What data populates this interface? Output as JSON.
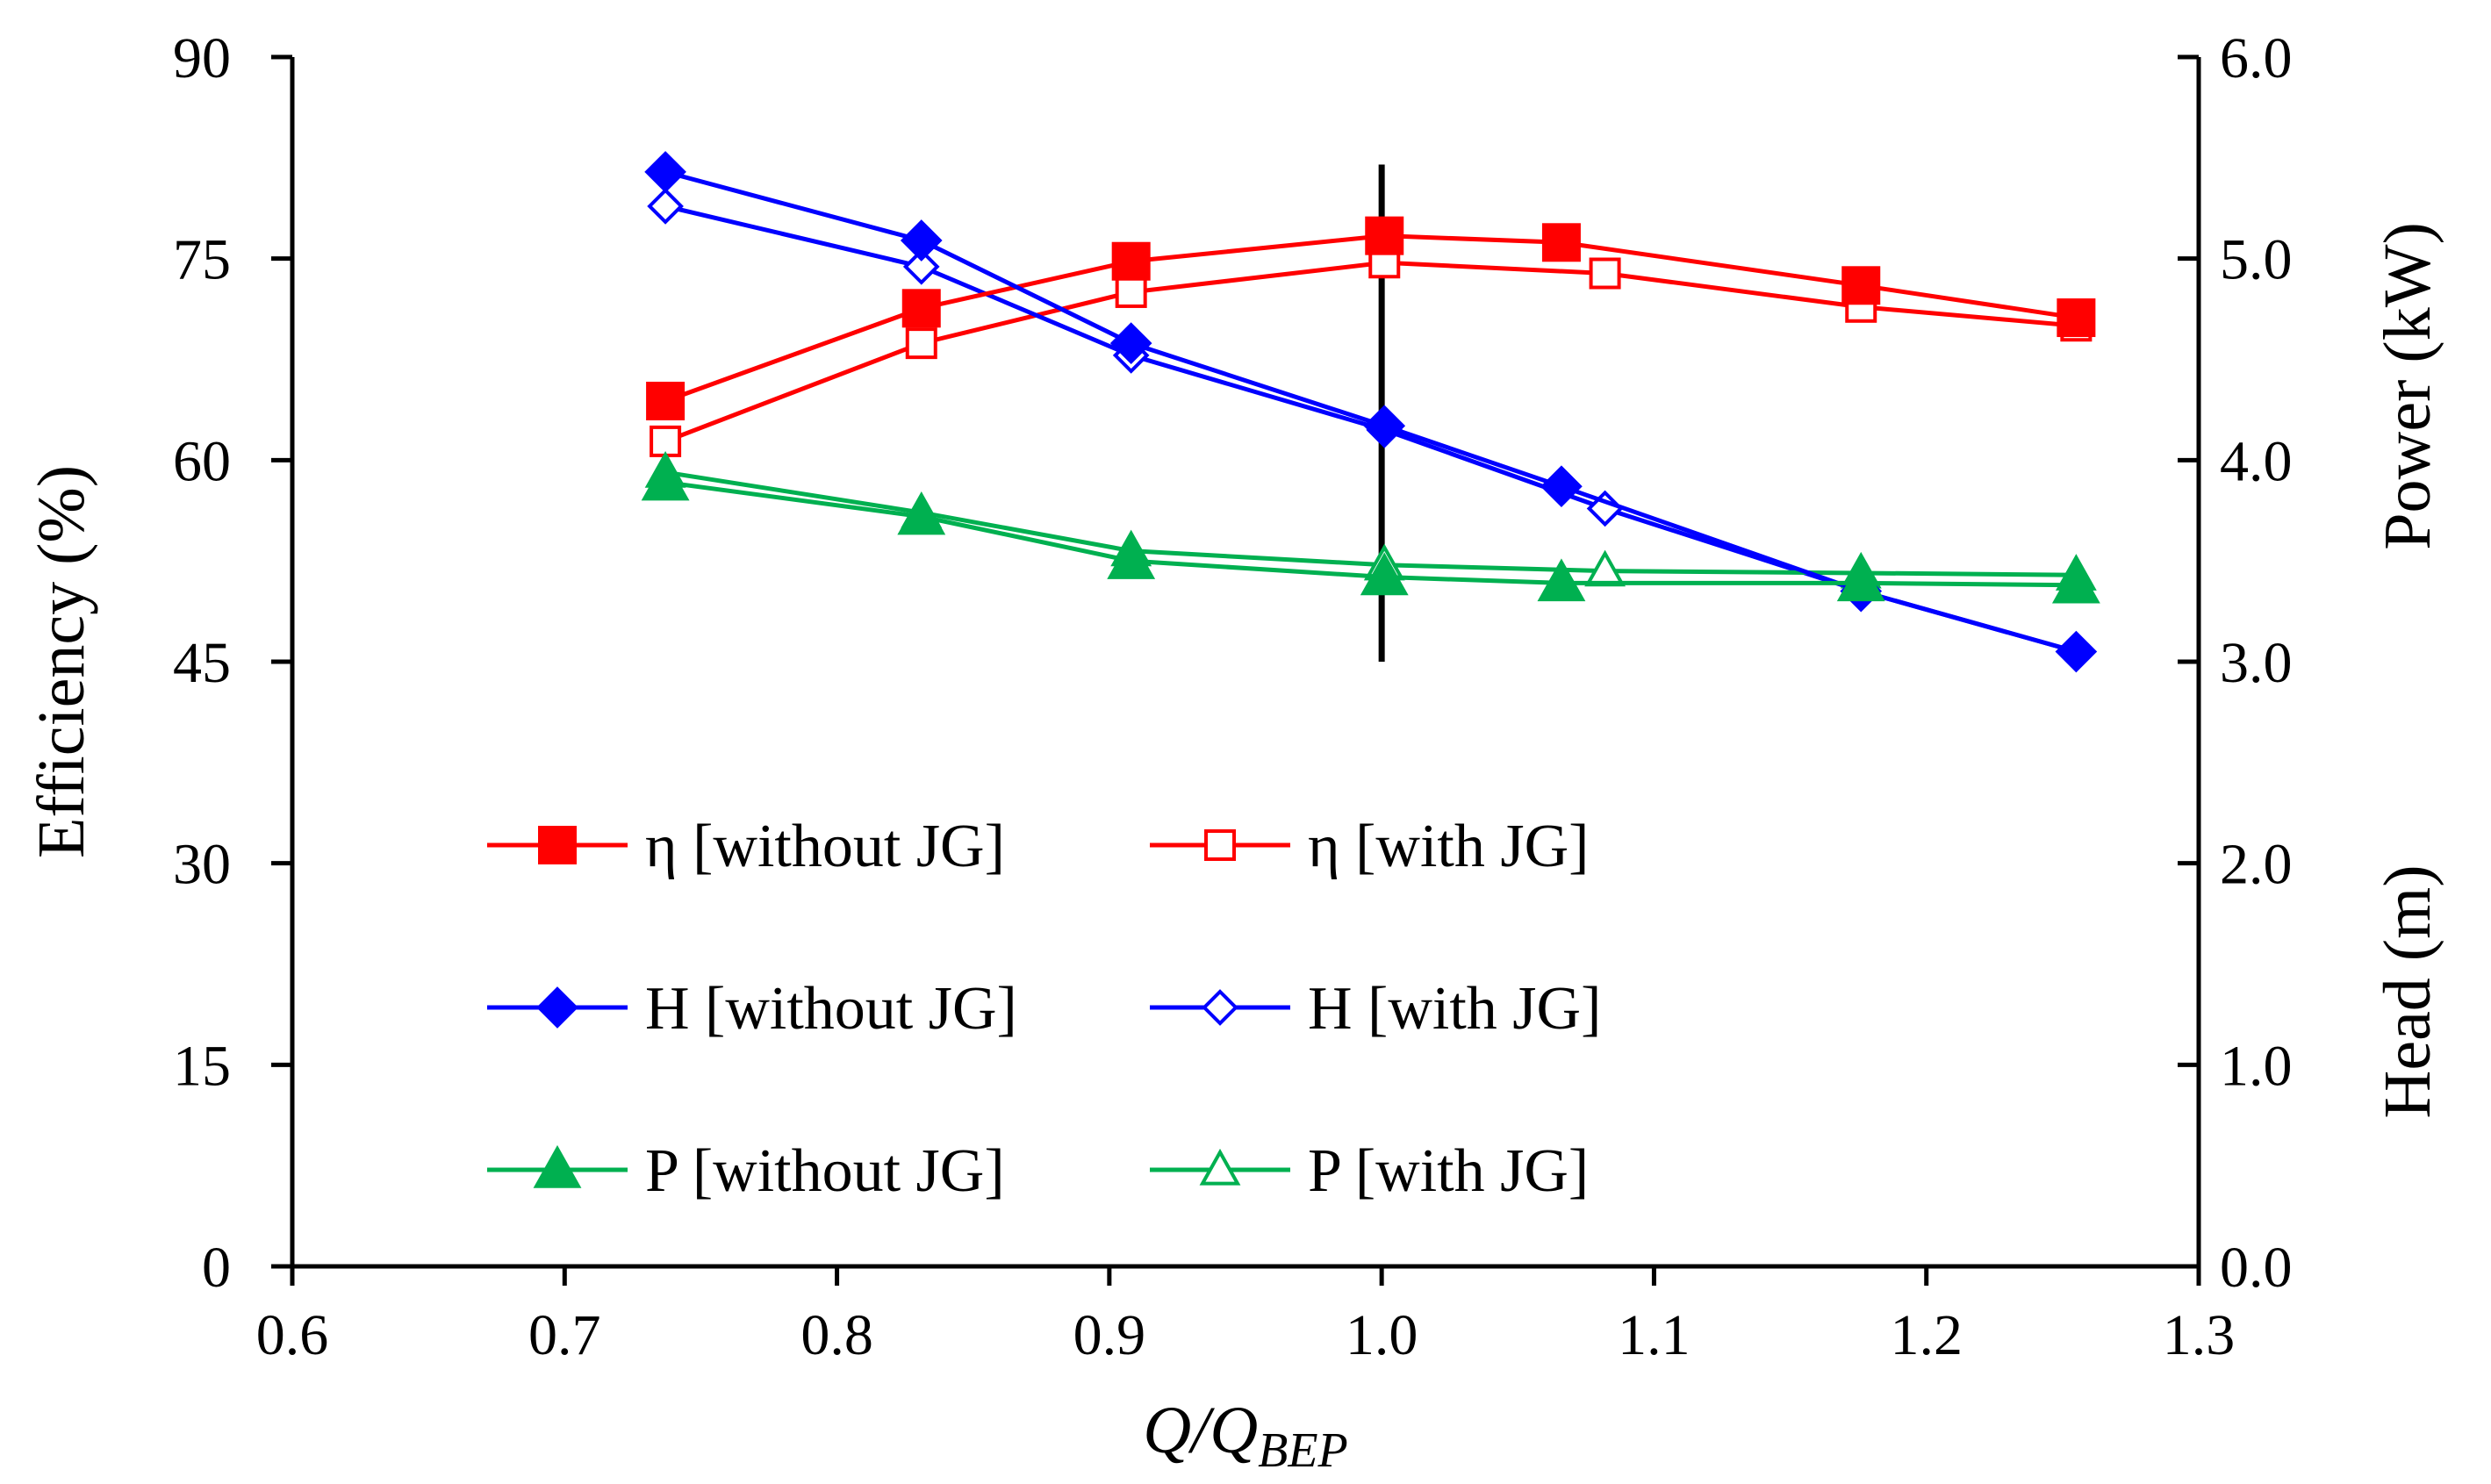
{
  "chart_data": {
    "type": "line",
    "x": {
      "label_main": "Q/Q",
      "label_sub": "BEP",
      "range": [
        0.6,
        1.3
      ],
      "ticks": [
        0.6,
        0.7,
        0.8,
        0.9,
        1.0,
        1.1,
        1.2,
        1.3
      ],
      "tick_labels": [
        "0.6",
        "0.7",
        "0.8",
        "0.9",
        "1.0",
        "1.1",
        "1.2",
        "1.3"
      ]
    },
    "y_left": {
      "label": "Efficiency (%)",
      "range": [
        0,
        90
      ],
      "ticks": [
        0,
        15,
        30,
        45,
        60,
        75,
        90
      ],
      "tick_labels": [
        "0",
        "15",
        "30",
        "45",
        "60",
        "75",
        "90"
      ]
    },
    "y_right": {
      "labels": [
        "Power (kW)",
        "Head (m)"
      ],
      "range": [
        0,
        6
      ],
      "ticks": [
        0,
        1,
        2,
        3,
        4,
        5,
        6
      ],
      "tick_labels": [
        "0.0",
        "1.0",
        "2.0",
        "3.0",
        "4.0",
        "5.0",
        "6.0"
      ]
    },
    "bep_marker": {
      "x": 1.0,
      "y_range": [
        45,
        82
      ]
    },
    "series": [
      {
        "name": "η [without JG]",
        "axis": "left",
        "color": "#ff0000",
        "marker": "square",
        "filled": true,
        "x": [
          0.737,
          0.831,
          0.908,
          1.001,
          1.066,
          1.176,
          1.255
        ],
        "y": [
          64.4,
          71.3,
          74.8,
          76.7,
          76.2,
          73.0,
          70.6
        ]
      },
      {
        "name": "η [with JG]",
        "axis": "left",
        "color": "#ff0000",
        "marker": "square",
        "filled": false,
        "x": [
          0.737,
          0.831,
          0.908,
          1.001,
          1.082,
          1.176,
          1.255
        ],
        "y": [
          61.4,
          68.7,
          72.5,
          74.7,
          73.9,
          71.4,
          70.0
        ]
      },
      {
        "name": "H [without JG]",
        "axis": "right",
        "color": "#0000ff",
        "marker": "diamond",
        "filled": true,
        "x": [
          0.737,
          0.831,
          0.908,
          1.001,
          1.066,
          1.176,
          1.255
        ],
        "y": [
          5.43,
          5.09,
          4.58,
          4.17,
          3.87,
          3.35,
          3.05
        ]
      },
      {
        "name": "H [with JG]",
        "axis": "right",
        "color": "#0000ff",
        "marker": "diamond",
        "filled": false,
        "x": [
          0.737,
          0.831,
          0.908,
          1.001,
          1.082,
          1.176,
          1.255
        ],
        "y": [
          5.26,
          4.96,
          4.52,
          4.15,
          3.76,
          3.35,
          3.05
        ]
      },
      {
        "name": "P [without JG]",
        "axis": "right",
        "color": "#00b050",
        "marker": "triangle",
        "filled": true,
        "x": [
          0.737,
          0.831,
          0.908,
          1.001,
          1.066,
          1.176,
          1.255
        ],
        "y": [
          3.89,
          3.72,
          3.5,
          3.42,
          3.39,
          3.39,
          3.38
        ]
      },
      {
        "name": "P [with JG]",
        "axis": "right",
        "color": "#00b050",
        "marker": "triangle",
        "filled": false,
        "x": [
          0.737,
          0.831,
          0.908,
          1.001,
          1.082,
          1.176,
          1.255
        ],
        "y": [
          3.94,
          3.74,
          3.55,
          3.48,
          3.45,
          3.44,
          3.43
        ]
      }
    ],
    "legend": {
      "placement": "inside-lower-left",
      "entries": [
        "η [without JG]",
        "η [with JG]",
        "H [without JG]",
        "H [with JG]",
        "P [without JG]",
        "P [with JG]"
      ]
    },
    "grid": false
  }
}
